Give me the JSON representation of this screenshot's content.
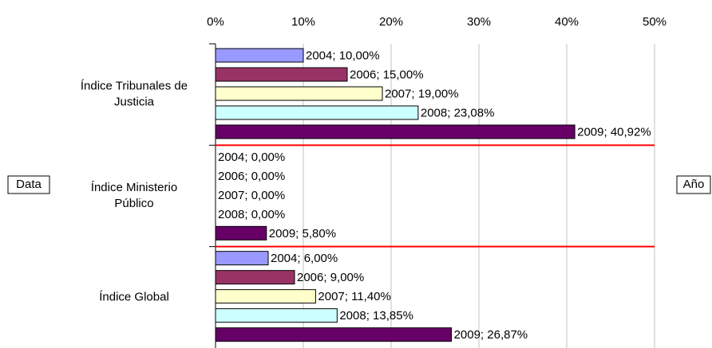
{
  "chart_data": {
    "type": "bar",
    "orientation": "horizontal",
    "categories": [
      "Índice Tribunales de Justicia",
      "Índice Ministerio Público",
      "Índice Global"
    ],
    "series": [
      {
        "name": "2004",
        "color": "#9999ff",
        "values": [
          10,
          0,
          6
        ],
        "value_labels": [
          "2004; 10,00%",
          "2004; 0,00%",
          "2004; 6,00%"
        ]
      },
      {
        "name": "2006",
        "color": "#993366",
        "values": [
          15,
          0,
          9
        ],
        "value_labels": [
          "2006; 15,00%",
          "2006; 0,00%",
          "2006; 9,00%"
        ]
      },
      {
        "name": "2007",
        "color": "#ffffcc",
        "values": [
          19,
          0,
          11.4
        ],
        "value_labels": [
          "2007; 19,00%",
          "2007; 0,00%",
          "2007; 11,40%"
        ]
      },
      {
        "name": "2008",
        "color": "#ccffff",
        "values": [
          23.08,
          0,
          13.85
        ],
        "value_labels": [
          "2008; 23,08%",
          "2008; 0,00%",
          "2008; 13,85%"
        ]
      },
      {
        "name": "2009",
        "color": "#660066",
        "values": [
          40.92,
          5.8,
          26.87
        ],
        "value_labels": [
          "2009; 40,92%",
          "2009; 5,80%",
          "2009; 26,87%"
        ]
      }
    ],
    "xlim": [
      0,
      50
    ],
    "xticks": [
      {
        "value": 0,
        "label": "0%"
      },
      {
        "value": 10,
        "label": "10%"
      },
      {
        "value": 20,
        "label": "20%"
      },
      {
        "value": 30,
        "label": "30%"
      },
      {
        "value": 40,
        "label": "40%"
      },
      {
        "value": 50,
        "label": "50%"
      }
    ],
    "grid": true,
    "separator_color": "#ff0000",
    "data_field": "Data",
    "series_field": "Año"
  }
}
